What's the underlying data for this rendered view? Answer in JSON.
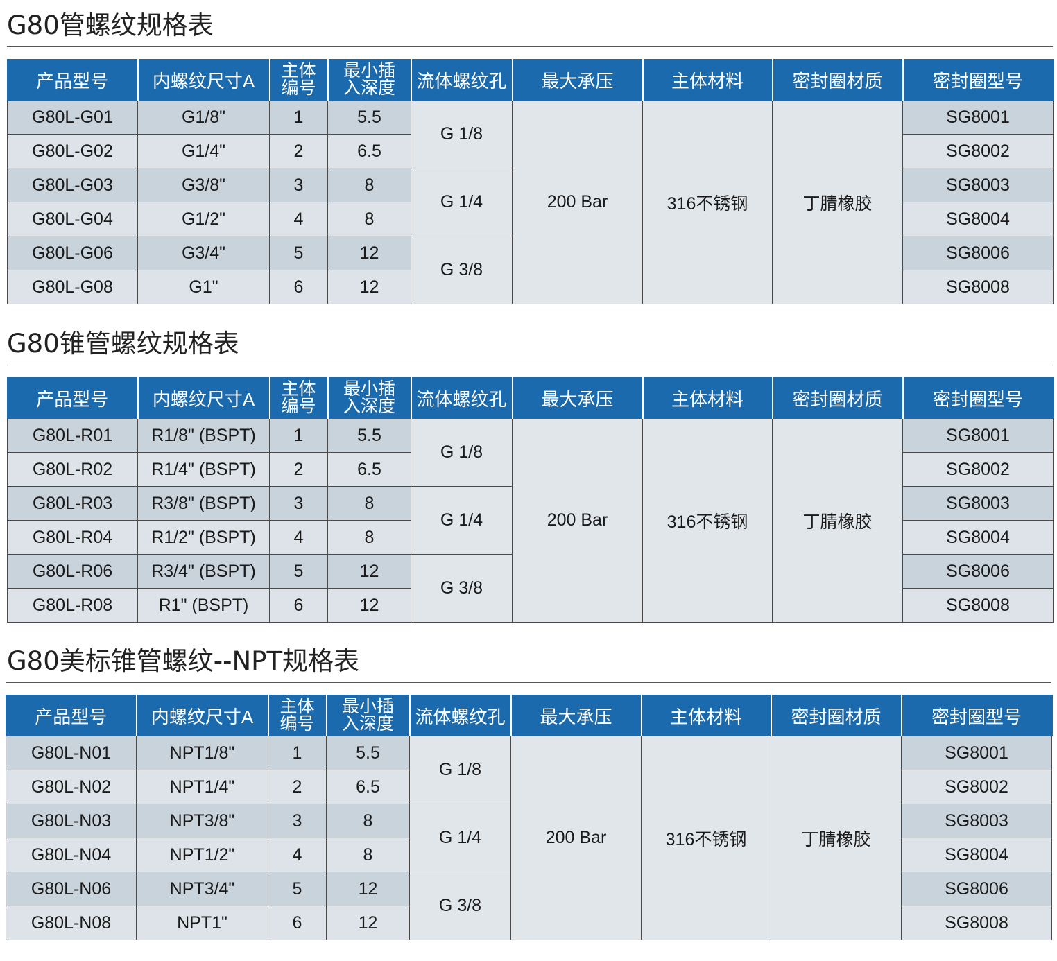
{
  "headers": [
    "产品型号",
    "内螺纹尺寸A",
    "主体\n编号",
    "最小插\n入深度",
    "流体螺纹孔",
    "最大承压",
    "主体材料",
    "密封圈材质",
    "密封圈型号"
  ],
  "tables": [
    {
      "title": "G80管螺纹规格表",
      "rows": [
        {
          "model": "G80L-G01",
          "thread": "G1/8\"",
          "body": "1",
          "depth": "5.5",
          "seal_model": "SG8001"
        },
        {
          "model": "G80L-G02",
          "thread": "G1/4\"",
          "body": "2",
          "depth": "6.5",
          "seal_model": "SG8002"
        },
        {
          "model": "G80L-G03",
          "thread": "G3/8\"",
          "body": "3",
          "depth": "8",
          "seal_model": "SG8003"
        },
        {
          "model": "G80L-G04",
          "thread": "G1/2\"",
          "body": "4",
          "depth": "8",
          "seal_model": "SG8004"
        },
        {
          "model": "G80L-G06",
          "thread": "G3/4\"",
          "body": "5",
          "depth": "12",
          "seal_model": "SG8006"
        },
        {
          "model": "G80L-G08",
          "thread": "G1\"",
          "body": "6",
          "depth": "12",
          "seal_model": "SG8008"
        }
      ],
      "fluid_ports": [
        "G 1/8",
        "G 1/4",
        "G 3/8"
      ],
      "max_pressure": "200 Bar",
      "body_material": "316不锈钢",
      "seal_material": "丁腈橡胶"
    },
    {
      "title": "G80锥管螺纹规格表",
      "rows": [
        {
          "model": "G80L-R01",
          "thread": "R1/8\" (BSPT)",
          "body": "1",
          "depth": "5.5",
          "seal_model": "SG8001"
        },
        {
          "model": "G80L-R02",
          "thread": "R1/4\" (BSPT)",
          "body": "2",
          "depth": "6.5",
          "seal_model": "SG8002"
        },
        {
          "model": "G80L-R03",
          "thread": "R3/8\" (BSPT)",
          "body": "3",
          "depth": "8",
          "seal_model": "SG8003"
        },
        {
          "model": "G80L-R04",
          "thread": "R1/2\" (BSPT)",
          "body": "4",
          "depth": "8",
          "seal_model": "SG8004"
        },
        {
          "model": "G80L-R06",
          "thread": "R3/4\" (BSPT)",
          "body": "5",
          "depth": "12",
          "seal_model": "SG8006"
        },
        {
          "model": "G80L-R08",
          "thread": "R1\" (BSPT)",
          "body": "6",
          "depth": "12",
          "seal_model": "SG8008"
        }
      ],
      "fluid_ports": [
        "G 1/8",
        "G 1/4",
        "G 3/8"
      ],
      "max_pressure": "200 Bar",
      "body_material": "316不锈钢",
      "seal_material": "丁腈橡胶"
    },
    {
      "title": "G80美标锥管螺纹--NPT规格表",
      "rows": [
        {
          "model": "G80L-N01",
          "thread": "NPT1/8\"",
          "body": "1",
          "depth": "5.5",
          "seal_model": "SG8001"
        },
        {
          "model": "G80L-N02",
          "thread": "NPT1/4\"",
          "body": "2",
          "depth": "6.5",
          "seal_model": "SG8002"
        },
        {
          "model": "G80L-N03",
          "thread": "NPT3/8\"",
          "body": "3",
          "depth": "8",
          "seal_model": "SG8003"
        },
        {
          "model": "G80L-N04",
          "thread": "NPT1/2\"",
          "body": "4",
          "depth": "8",
          "seal_model": "SG8004"
        },
        {
          "model": "G80L-N06",
          "thread": "NPT3/4\"",
          "body": "5",
          "depth": "12",
          "seal_model": "SG8006"
        },
        {
          "model": "G80L-N08",
          "thread": "NPT1\"",
          "body": "6",
          "depth": "12",
          "seal_model": "SG8008"
        }
      ],
      "fluid_ports": [
        "G 1/8",
        "G 1/4",
        "G 3/8"
      ],
      "max_pressure": "200 Bar",
      "body_material": "316不锈钢",
      "seal_material": "丁腈橡胶"
    }
  ],
  "colors": {
    "header_bg": "#1b6aad",
    "row_dark": "#c9d3dc",
    "row_light": "#dde3e8",
    "merged_bg": "#e1e6ea"
  }
}
